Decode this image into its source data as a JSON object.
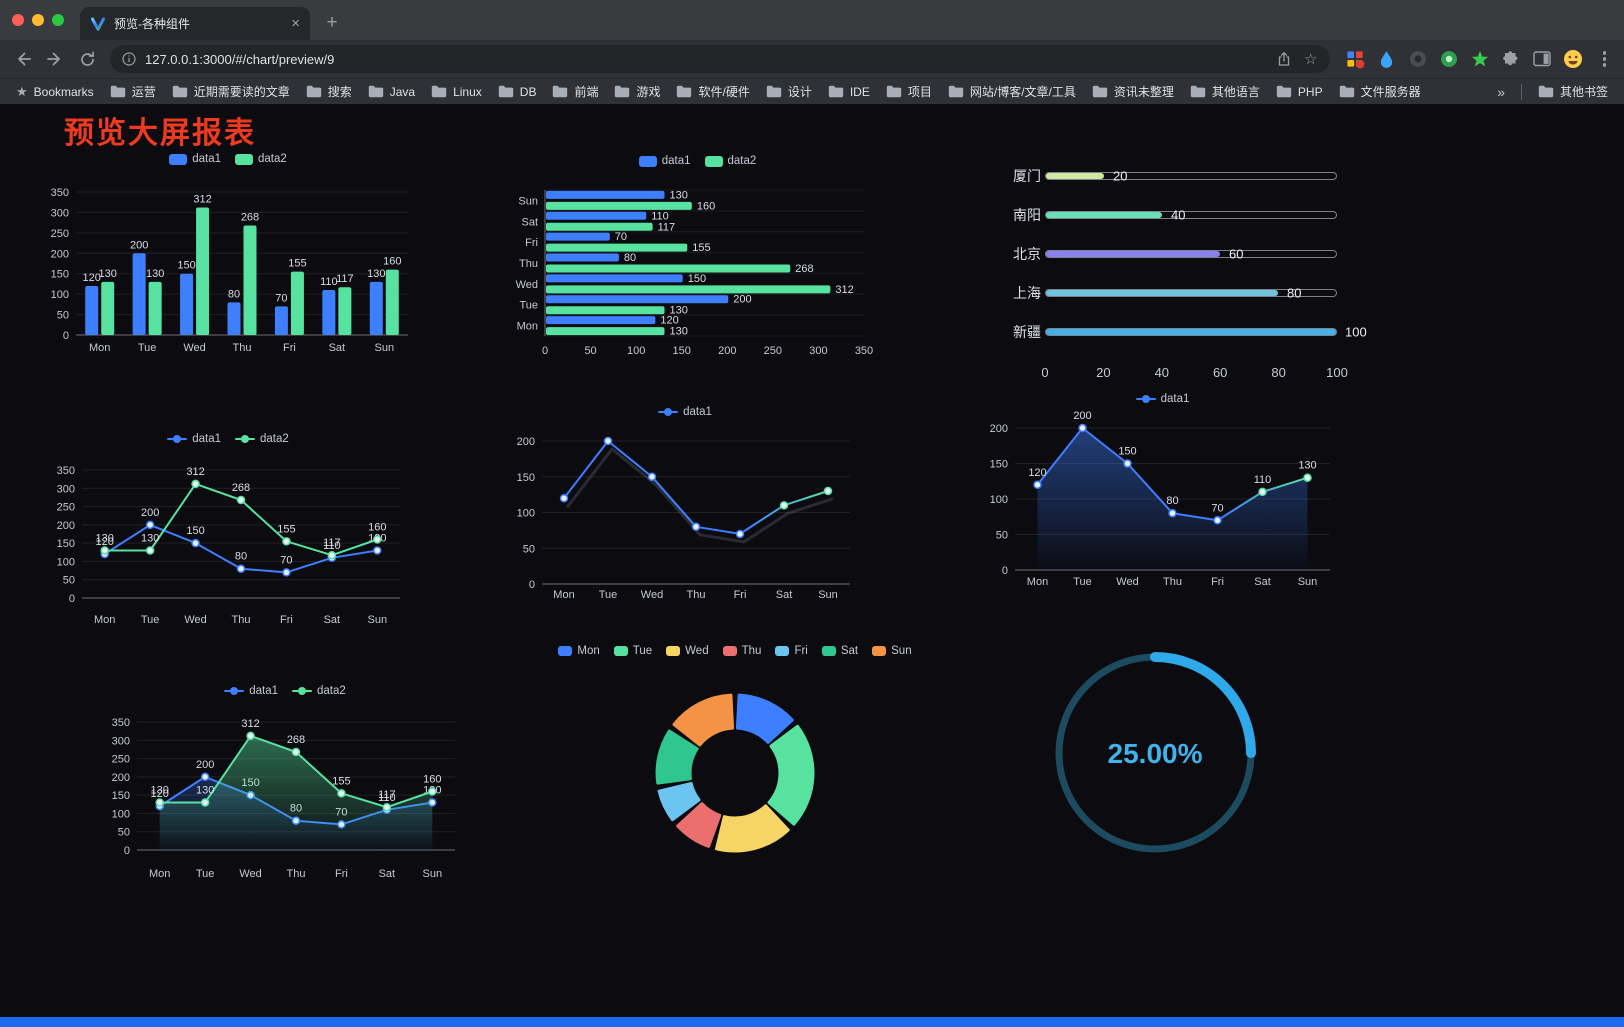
{
  "browser": {
    "tab": {
      "title": "预览-各种组件"
    },
    "glyphs": {
      "tab_close": "×",
      "new_tab": "+",
      "bookmarks_star": "★",
      "omnibox_star": "☆",
      "overflow_chevrons": "»"
    },
    "toolbar": {
      "url": "127.0.0.1:3000/#/chart/preview/9"
    },
    "icons": {
      "tab_favicon": "colorful-v-logo",
      "nav": [
        "back-arrow",
        "forward-arrow",
        "refresh"
      ],
      "omnibox": [
        "info-circle",
        "share-upload",
        "bookmark-star"
      ],
      "extensions": [
        "grid-apps-badge",
        "blue-drop",
        "dark-circle",
        "green-circle",
        "green-star",
        "puzzle",
        "side-panel",
        "emoji-face-avatar"
      ],
      "menu": "three-dots-vertical",
      "bookmark_folder": "folder"
    },
    "bookmarks_bar": {
      "bookmarks_label": "Bookmarks",
      "items": [
        "运营",
        "近期需要读的文章",
        "搜索",
        "Java",
        "Linux",
        "DB",
        "前端",
        "游戏",
        "软件/硬件",
        "设计",
        "IDE",
        "项目",
        "网站/博客/文章/工具",
        "资讯未整理",
        "其他语言",
        "PHP",
        "文件服务器"
      ],
      "overflow_label": "»",
      "other_bookmarks_label": "其他书签"
    }
  },
  "page": {
    "title": "预览大屏报表",
    "title_color": "#ED3A21",
    "background_color": "#0B0B10",
    "footer_accent_color": "#1A6BF2",
    "axis_text_color": "#C6CAD4"
  },
  "chart_data": [
    {
      "id": "bar-grouped",
      "type": "bar",
      "categories": [
        "Mon",
        "Tue",
        "Wed",
        "Thu",
        "Fri",
        "Sat",
        "Sun"
      ],
      "series": [
        {
          "name": "data1",
          "color": "#3D7FFF",
          "values": [
            120,
            200,
            150,
            80,
            70,
            110,
            130
          ]
        },
        {
          "name": "data2",
          "color": "#58E29F",
          "values": [
            130,
            130,
            312,
            268,
            155,
            117,
            160
          ]
        }
      ],
      "ylim": [
        0,
        350
      ],
      "yticks": [
        0,
        50,
        100,
        150,
        200,
        250,
        300,
        350
      ],
      "legend_position": "top",
      "point_labels": true
    },
    {
      "id": "bar-horizontal",
      "type": "bar-horizontal",
      "categories": [
        "Mon",
        "Tue",
        "Wed",
        "Thu",
        "Fri",
        "Sat",
        "Sun"
      ],
      "series": [
        {
          "name": "data1",
          "color": "#3D7FFF",
          "values": [
            120,
            200,
            150,
            80,
            70,
            110,
            130
          ]
        },
        {
          "name": "data2",
          "color": "#58E29F",
          "values": [
            130,
            130,
            312,
            268,
            155,
            117,
            160
          ]
        }
      ],
      "xlim": [
        0,
        350
      ],
      "xticks": [
        0,
        50,
        100,
        150,
        200,
        250,
        300,
        350
      ],
      "legend_position": "top",
      "point_labels": true
    },
    {
      "id": "city-progress",
      "type": "progress-bars",
      "max": 100,
      "items": [
        {
          "label": "厦门",
          "value": 20,
          "color": "#CFE9A2"
        },
        {
          "label": "南阳",
          "value": 40,
          "color": "#68DFB4"
        },
        {
          "label": "北京",
          "value": 60,
          "color": "#8A82F0"
        },
        {
          "label": "上海",
          "value": 80,
          "color": "#6FC3DC"
        },
        {
          "label": "新疆",
          "value": 100,
          "color": "#44B1E8"
        }
      ],
      "xticks": [
        0,
        20,
        40,
        60,
        80,
        100
      ]
    },
    {
      "id": "line-dual",
      "type": "line",
      "categories": [
        "Mon",
        "Tue",
        "Wed",
        "Thu",
        "Fri",
        "Sat",
        "Sun"
      ],
      "series": [
        {
          "name": "data1",
          "color": "#3D7FFF",
          "values": [
            120,
            200,
            150,
            80,
            70,
            110,
            130
          ]
        },
        {
          "name": "data2",
          "color": "#58E29F",
          "values": [
            130,
            130,
            312,
            268,
            155,
            117,
            160
          ]
        }
      ],
      "ylim": [
        0,
        350
      ],
      "yticks": [
        0,
        50,
        100,
        150,
        200,
        250,
        300,
        350
      ],
      "legend_position": "top",
      "point_labels": true,
      "area": false
    },
    {
      "id": "line-single",
      "type": "line",
      "categories": [
        "Mon",
        "Tue",
        "Wed",
        "Thu",
        "Fri",
        "Sat",
        "Sun"
      ],
      "series": [
        {
          "name": "data1",
          "color": "#3D7FFF",
          "color_end": "#58E29F",
          "values": [
            120,
            200,
            150,
            80,
            70,
            110,
            130
          ]
        }
      ],
      "ylim": [
        0,
        200
      ],
      "yticks": [
        0,
        50,
        100,
        150,
        200
      ],
      "legend_position": "top",
      "point_labels": false,
      "area": false
    },
    {
      "id": "area-single",
      "type": "line",
      "categories": [
        "Mon",
        "Tue",
        "Wed",
        "Thu",
        "Fri",
        "Sat",
        "Sun"
      ],
      "series": [
        {
          "name": "data1",
          "color": "#3D7FFF",
          "color_end": "#58E29F",
          "values": [
            120,
            200,
            150,
            80,
            70,
            110,
            130
          ]
        }
      ],
      "ylim": [
        0,
        200
      ],
      "yticks": [
        0,
        50,
        100,
        150,
        200
      ],
      "legend_position": "top",
      "point_labels": true,
      "area": true
    },
    {
      "id": "area-dual",
      "type": "line",
      "categories": [
        "Mon",
        "Tue",
        "Wed",
        "Thu",
        "Fri",
        "Sat",
        "Sun"
      ],
      "series": [
        {
          "name": "data1",
          "color": "#3D7FFF",
          "values": [
            120,
            200,
            150,
            80,
            70,
            110,
            130
          ]
        },
        {
          "name": "data2",
          "color": "#58E29F",
          "values": [
            130,
            130,
            312,
            268,
            155,
            117,
            160
          ]
        }
      ],
      "ylim": [
        0,
        350
      ],
      "yticks": [
        0,
        50,
        100,
        150,
        200,
        250,
        300,
        350
      ],
      "legend_position": "top",
      "point_labels": true,
      "area": true
    },
    {
      "id": "donut-week",
      "type": "pie",
      "categories": [
        "Mon",
        "Tue",
        "Wed",
        "Thu",
        "Fri",
        "Sat",
        "Sun"
      ],
      "values": [
        120,
        200,
        150,
        80,
        70,
        110,
        130
      ],
      "colors": [
        "#3D7FFF",
        "#58E29F",
        "#F6D465",
        "#EB6F6F",
        "#6CC5F1",
        "#2FC690",
        "#F49245"
      ],
      "inner_radius_ratio": 0.58,
      "legend_position": "top"
    },
    {
      "id": "gauge-percent",
      "type": "gauge",
      "value": 25,
      "max": 100,
      "label": "25.00%",
      "color": "#2FA9E9",
      "track_color": "#1C4A5E",
      "text_color": "#3FB3EA"
    }
  ]
}
